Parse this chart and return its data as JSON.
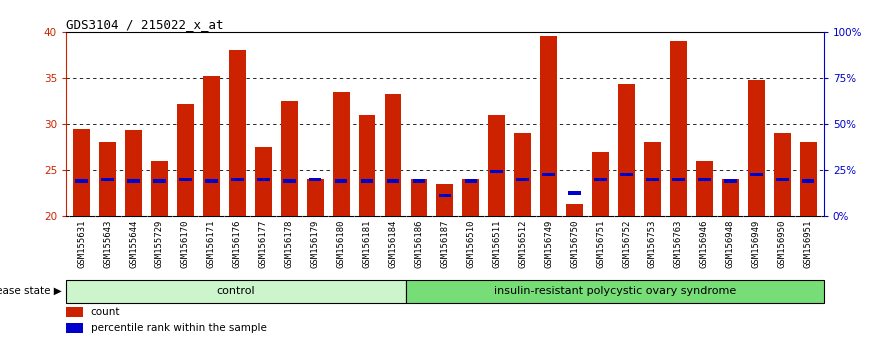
{
  "title": "GDS3104 / 215022_x_at",
  "samples": [
    "GSM155631",
    "GSM155643",
    "GSM155644",
    "GSM155729",
    "GSM156170",
    "GSM156171",
    "GSM156176",
    "GSM156177",
    "GSM156178",
    "GSM156179",
    "GSM156180",
    "GSM156181",
    "GSM156184",
    "GSM156186",
    "GSM156187",
    "GSM156510",
    "GSM156511",
    "GSM156512",
    "GSM156749",
    "GSM156750",
    "GSM156751",
    "GSM156752",
    "GSM156753",
    "GSM156763",
    "GSM156946",
    "GSM156948",
    "GSM156949",
    "GSM156950",
    "GSM156951"
  ],
  "count_values": [
    29.5,
    28.0,
    29.3,
    26.0,
    32.2,
    35.2,
    38.0,
    27.5,
    32.5,
    24.0,
    33.5,
    31.0,
    33.3,
    24.0,
    23.5,
    24.0,
    31.0,
    29.0,
    39.5,
    21.3,
    27.0,
    34.3,
    28.0,
    39.0,
    26.0,
    24.0,
    34.8,
    29.0,
    28.0
  ],
  "percentile_values": [
    23.8,
    24.0,
    23.8,
    23.8,
    24.0,
    23.8,
    24.0,
    24.0,
    23.8,
    24.0,
    23.8,
    23.8,
    23.8,
    23.8,
    22.2,
    23.8,
    24.8,
    24.0,
    24.5,
    22.5,
    24.0,
    24.5,
    24.0,
    24.0,
    24.0,
    23.8,
    24.5,
    24.0,
    23.8
  ],
  "control_count": 13,
  "disease_label": "insulin-resistant polycystic ovary syndrome",
  "control_label": "control",
  "disease_state_label": "disease state",
  "bar_color": "#cc2200",
  "percentile_color": "#0000cc",
  "ymin": 20,
  "ymax": 40,
  "yticks": [
    20,
    25,
    30,
    35,
    40
  ],
  "right_yticks": [
    0,
    25,
    50,
    75,
    100
  ],
  "right_yticklabels": [
    "0%",
    "25%",
    "50%",
    "75%",
    "100%"
  ],
  "grid_values": [
    25,
    30,
    35
  ],
  "control_bg": "#ccf5cc",
  "disease_bg": "#77dd77",
  "xtick_bg": "#d8d8d8",
  "title_fontsize": 9,
  "tick_fontsize": 6.5,
  "label_fontsize": 8,
  "bar_width": 0.65
}
